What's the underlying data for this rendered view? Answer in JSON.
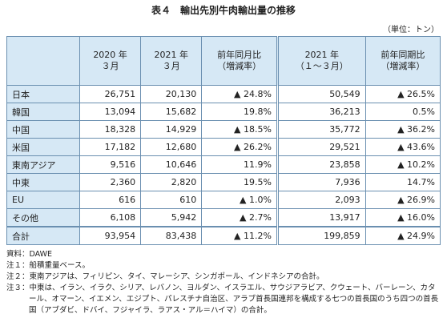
{
  "header": {
    "title": "表４　輸出先別牛肉輸出量の推移",
    "unit": "（単位：トン）"
  },
  "table": {
    "columns": [
      "2020 年\n３月",
      "2021 年\n３月",
      "前年同月比\n（増減率）",
      "2021 年\n（１～３月）",
      "前年同期比\n（増減率）"
    ],
    "rows": [
      [
        "日本",
        "26,751",
        "20,130",
        "▲ 24.8%",
        "50,549",
        "▲ 26.5%"
      ],
      [
        "韓国",
        "13,094",
        "15,682",
        "19.8%",
        "36,213",
        "0.5%"
      ],
      [
        "中国",
        "18,328",
        "14,929",
        "▲ 18.5%",
        "35,772",
        "▲ 36.2%"
      ],
      [
        "米国",
        "17,182",
        "12,680",
        "▲ 26.2%",
        "29,521",
        "▲ 43.6%"
      ],
      [
        "東南アジア",
        "9,516",
        "10,646",
        "11.9%",
        "23,858",
        "▲ 10.2%"
      ],
      [
        "中東",
        "2,360",
        "2,820",
        "19.5%",
        "7,936",
        "14.7%"
      ],
      [
        "EU",
        "616",
        "610",
        "▲ 1.0%",
        "2,093",
        "▲ 26.9%"
      ],
      [
        "その他",
        "6,108",
        "5,942",
        "▲ 2.7%",
        "13,917",
        "▲ 16.0%"
      ],
      [
        "合計",
        "93,954",
        "83,438",
        "▲ 11.2%",
        "199,859",
        "▲ 24.9%"
      ]
    ]
  },
  "notes": [
    "資料：DAWE",
    "注１：船積重量ベース。",
    "注２：東南アジアは、フィリピン、タイ、マレーシア、シンガポール、インドネシアの合計。",
    "注３：中東は、イラン、イラク、シリア、レバノン、ヨルダン、イスラエル、サウジアラビア、クウェート、バーレーン、カタール、オマーン、イエメン、エジプト、パレスチナ自治区、アラブ首長国連邦を構成する七つの首長国のうち四つの首長国（アブダビ、ドバイ、フジャイラ、ラアス・アル＝ハイマ）の合計。"
  ]
}
